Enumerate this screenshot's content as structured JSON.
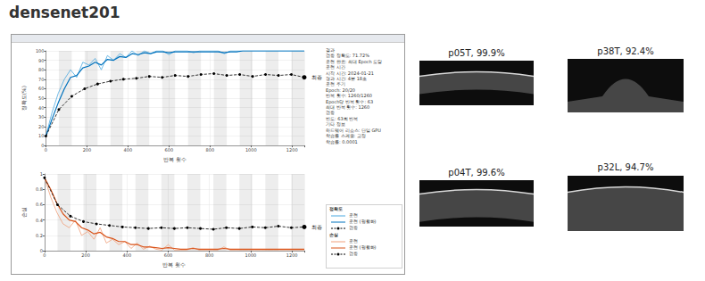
{
  "title": "densenet201",
  "chart_data": [
    {
      "type": "line",
      "xlabel": "반복 횟수",
      "ylabel": "정확도(%)",
      "legend_title": "정확도",
      "xlim": [
        0,
        1260
      ],
      "xticks": [
        0,
        200,
        400,
        600,
        800,
        1000,
        1200
      ],
      "ylim": [
        0,
        100
      ],
      "yticks": [
        0,
        10,
        20,
        30,
        40,
        50,
        60,
        70,
        80,
        90,
        100
      ],
      "grid": true,
      "epoch_iterations": 63,
      "series": [
        {
          "name": "훈련",
          "color": "#4aa8e0",
          "line_style": "solid",
          "marker": "none",
          "x": [
            0,
            30,
            60,
            90,
            120,
            150,
            180,
            210,
            240,
            270,
            300,
            330,
            360,
            390,
            420,
            450,
            480,
            510,
            540,
            570,
            600,
            630,
            660,
            690,
            720,
            750,
            780,
            810,
            840,
            870,
            900,
            930,
            960,
            990,
            1020,
            1050,
            1080,
            1110,
            1140,
            1170,
            1200,
            1230,
            1260
          ],
          "values": [
            10,
            35,
            55,
            70,
            80,
            72,
            88,
            85,
            92,
            80,
            95,
            90,
            97,
            93,
            100,
            95,
            100,
            97,
            100,
            100,
            96,
            100,
            100,
            100,
            98,
            100,
            100,
            100,
            100,
            97,
            100,
            100,
            100,
            100,
            100,
            100,
            100,
            100,
            100,
            100,
            100,
            100,
            100
          ]
        },
        {
          "name": "훈련 (평활화)",
          "color": "#0072bd",
          "line_style": "solid",
          "marker": "none",
          "x": [
            0,
            30,
            60,
            90,
            120,
            150,
            180,
            210,
            240,
            270,
            300,
            330,
            360,
            390,
            420,
            450,
            480,
            510,
            540,
            570,
            600,
            630,
            660,
            690,
            720,
            750,
            780,
            810,
            840,
            870,
            900,
            930,
            960,
            990,
            1020,
            1050,
            1080,
            1110,
            1140,
            1170,
            1200,
            1230,
            1260
          ],
          "values": [
            10,
            28,
            45,
            60,
            72,
            74,
            82,
            84,
            88,
            85,
            91,
            90,
            94,
            93,
            97,
            96,
            98,
            97,
            99,
            99,
            98,
            99,
            99,
            99,
            99,
            99,
            99,
            99,
            99,
            98,
            99,
            99,
            100,
            100,
            100,
            100,
            100,
            100,
            100,
            100,
            100,
            100,
            100
          ]
        },
        {
          "name": "검증",
          "color": "#000000",
          "line_style": "dashed",
          "marker": "circle",
          "end_label": "최종",
          "x": [
            0,
            63,
            126,
            189,
            252,
            315,
            378,
            441,
            504,
            567,
            630,
            693,
            756,
            819,
            882,
            945,
            1008,
            1071,
            1134,
            1197,
            1260
          ],
          "values": [
            10,
            38,
            52,
            60,
            65,
            68,
            70,
            71,
            73,
            72,
            74,
            73,
            75,
            76,
            74,
            75,
            73,
            75,
            74,
            75,
            72
          ]
        }
      ]
    },
    {
      "type": "line",
      "xlabel": "반복 횟수",
      "ylabel": "손실",
      "legend_title": "손실",
      "xlim": [
        0,
        1260
      ],
      "xticks": [
        0,
        200,
        400,
        600,
        800,
        1000,
        1200
      ],
      "ylim": [
        0,
        1
      ],
      "yticks": [
        0,
        0.2,
        0.4,
        0.6,
        0.8,
        1
      ],
      "grid": true,
      "epoch_iterations": 63,
      "series": [
        {
          "name": "훈련",
          "color": "#f0a07a",
          "line_style": "solid",
          "marker": "none",
          "x": [
            0,
            30,
            60,
            90,
            120,
            150,
            180,
            210,
            240,
            270,
            300,
            330,
            360,
            390,
            420,
            450,
            480,
            510,
            540,
            570,
            600,
            630,
            660,
            690,
            720,
            750,
            780,
            810,
            840,
            870,
            900,
            930,
            960,
            990,
            1020,
            1050,
            1080,
            1110,
            1140,
            1170,
            1200,
            1230,
            1260
          ],
          "values": [
            0.95,
            0.7,
            0.5,
            0.35,
            0.3,
            0.4,
            0.2,
            0.25,
            0.15,
            0.3,
            0.1,
            0.15,
            0.08,
            0.12,
            0.03,
            0.1,
            0.02,
            0.06,
            0.02,
            0.01,
            0.08,
            0.01,
            0.01,
            0.01,
            0.04,
            0.01,
            0.01,
            0.01,
            0.01,
            0.05,
            0.01,
            0.01,
            0.01,
            0.01,
            0.01,
            0.01,
            0.01,
            0.01,
            0.01,
            0.01,
            0.01,
            0.01,
            0.01
          ]
        },
        {
          "name": "훈련 (평활화)",
          "color": "#d95319",
          "line_style": "solid",
          "marker": "none",
          "x": [
            0,
            30,
            60,
            90,
            120,
            150,
            180,
            210,
            240,
            270,
            300,
            330,
            360,
            390,
            420,
            450,
            480,
            510,
            540,
            570,
            600,
            630,
            660,
            690,
            720,
            750,
            780,
            810,
            840,
            870,
            900,
            930,
            960,
            990,
            1020,
            1050,
            1080,
            1110,
            1140,
            1170,
            1200,
            1230,
            1260
          ],
          "values": [
            0.95,
            0.8,
            0.62,
            0.48,
            0.4,
            0.38,
            0.3,
            0.27,
            0.22,
            0.24,
            0.18,
            0.16,
            0.12,
            0.12,
            0.08,
            0.08,
            0.05,
            0.05,
            0.04,
            0.03,
            0.04,
            0.03,
            0.02,
            0.02,
            0.03,
            0.02,
            0.02,
            0.02,
            0.02,
            0.03,
            0.02,
            0.02,
            0.02,
            0.02,
            0.02,
            0.02,
            0.02,
            0.02,
            0.02,
            0.02,
            0.02,
            0.02,
            0.02
          ]
        },
        {
          "name": "검증",
          "color": "#000000",
          "line_style": "dashed",
          "marker": "circle",
          "end_label": "최종",
          "x": [
            0,
            63,
            126,
            189,
            252,
            315,
            378,
            441,
            504,
            567,
            630,
            693,
            756,
            819,
            882,
            945,
            1008,
            1071,
            1134,
            1197,
            1260
          ],
          "values": [
            0.95,
            0.6,
            0.45,
            0.38,
            0.35,
            0.33,
            0.31,
            0.3,
            0.29,
            0.3,
            0.29,
            0.3,
            0.29,
            0.28,
            0.3,
            0.29,
            0.31,
            0.3,
            0.32,
            0.3,
            0.31
          ]
        }
      ]
    }
  ],
  "panel": {
    "lines": [
      "결과",
      "검증 정확도: 71.72%",
      "훈련 완료: 최대 Epoch 도달",
      "훈련 시간",
      "시작 시간: 2024-01-21",
      "경과 시간: 4분 18초",
      "훈련 주기",
      "Epoch: 20/20",
      "반복 횟수: 1260/1260",
      "Epoch당 반복 횟수: 63",
      "최대 반복 횟수: 1260",
      "검증",
      "빈도: 63회 반복",
      "기타 정보",
      "하드웨어 리소스: 단일 GPU",
      "학습률 스케줄: 고정",
      "학습률: 0.0001"
    ]
  },
  "images": [
    {
      "caption": "p05T, 99.9%"
    },
    {
      "caption": "p38T, 92.4%"
    },
    {
      "caption": "p04T, 99.6%"
    },
    {
      "caption": "p32L, 94.7%"
    }
  ]
}
